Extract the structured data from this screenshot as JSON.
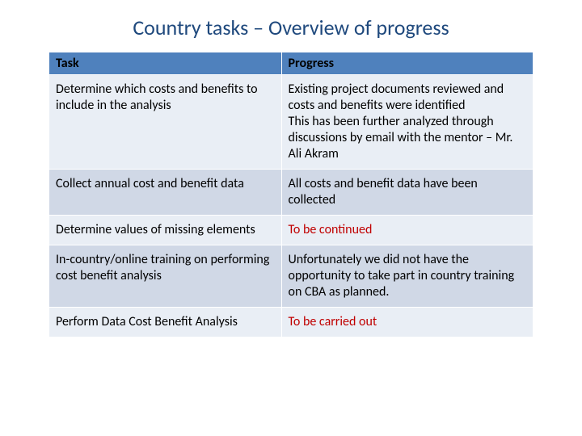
{
  "title": "Country tasks – Overview of progress",
  "colors": {
    "title": "#1f497d",
    "header_bg": "#4f81bd",
    "header_text": "#000000",
    "row_light": "#e9eef5",
    "row_alt": "#d0d8e6",
    "body_text": "#000000",
    "highlight": "#c00000",
    "border": "#ffffff",
    "background": "#ffffff"
  },
  "typography": {
    "title_fontsize": 26,
    "header_fontsize": 16,
    "cell_fontsize": 16,
    "font_family": "Calibri"
  },
  "table": {
    "type": "table",
    "columns": [
      "Task",
      "Progress"
    ],
    "column_widths": [
      "48%",
      "52%"
    ],
    "rows": [
      {
        "task": "Determine which costs and benefits to include in the analysis",
        "progress": "Existing project documents reviewed and costs and benefits were identified\nThis has been further analyzed through discussions by email with the mentor – Mr. Ali Akram",
        "highlight": false
      },
      {
        "task": "Collect annual cost and benefit data",
        "progress": "All costs and benefit data have been collected",
        "highlight": false
      },
      {
        "task": "Determine values of missing elements",
        "progress": "To be continued",
        "highlight": true
      },
      {
        "task": "In-country/online training on performing cost benefit analysis",
        "progress": "Unfortunately we  did not have the opportunity to take part in country training on CBA as planned.",
        "highlight": false
      },
      {
        "task": "Perform Data Cost Benefit Analysis",
        "progress": "To be carried out",
        "highlight": true
      }
    ]
  }
}
